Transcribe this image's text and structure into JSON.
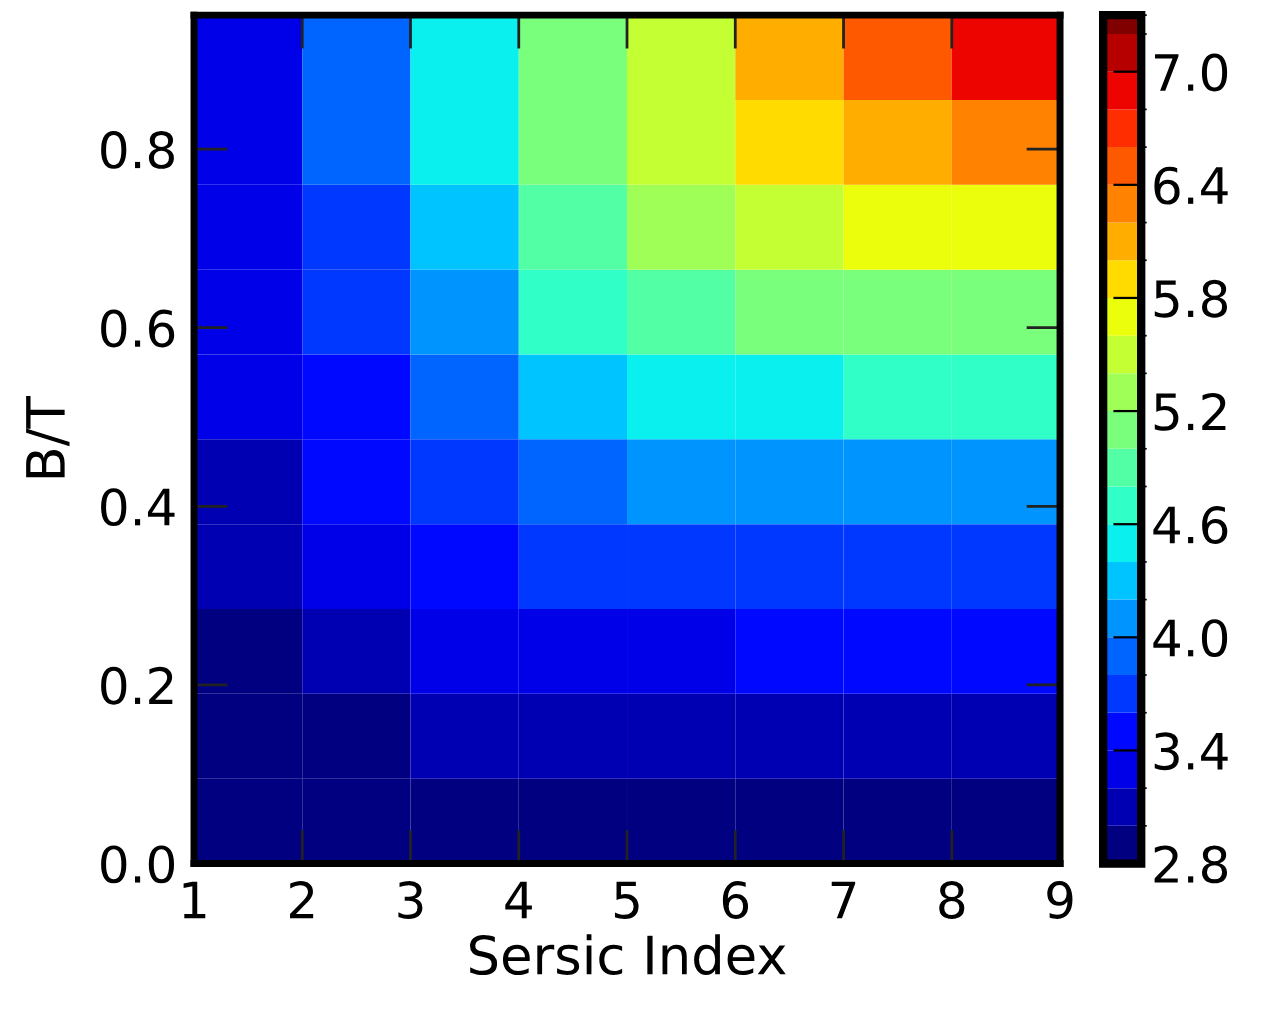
{
  "chart_data": {
    "type": "heatmap",
    "xlabel": "Sersic Index",
    "ylabel": "B/T",
    "x": [
      1.5,
      2.5,
      3.5,
      4.5,
      5.5,
      6.5,
      7.5,
      8.5
    ],
    "y": [
      0.0475,
      0.1425,
      0.2375,
      0.3325,
      0.4275,
      0.5225,
      0.6175,
      0.7125,
      0.8075,
      0.9025
    ],
    "cells": [
      [
        2.83,
        2.86,
        2.87,
        2.87,
        2.88,
        2.89,
        2.89,
        2.9
      ],
      [
        2.88,
        2.98,
        3.03,
        3.06,
        3.09,
        3.11,
        3.12,
        3.14
      ],
      [
        2.97,
        3.14,
        3.25,
        3.33,
        3.37,
        3.4,
        3.42,
        3.43
      ],
      [
        3.05,
        3.31,
        3.5,
        3.63,
        3.7,
        3.72,
        3.74,
        3.76
      ],
      [
        3.12,
        3.46,
        3.75,
        3.96,
        4.07,
        4.1,
        4.13,
        4.14
      ],
      [
        3.2,
        3.59,
        3.99,
        4.31,
        4.5,
        4.56,
        4.6,
        4.63
      ],
      [
        3.25,
        3.69,
        4.18,
        4.63,
        4.93,
        5.05,
        5.13,
        5.18
      ],
      [
        3.3,
        3.78,
        4.32,
        4.86,
        5.26,
        5.5,
        5.67,
        5.78
      ],
      [
        3.33,
        3.84,
        4.42,
        5.0,
        5.48,
        5.84,
        6.14,
        6.36
      ],
      [
        3.36,
        3.89,
        4.48,
        5.08,
        5.6,
        6.07,
        6.54,
        6.93
      ]
    ],
    "xlim": [
      1,
      9
    ],
    "ylim": [
      0,
      0.95
    ],
    "xticks": [
      1,
      2,
      3,
      4,
      5,
      6,
      7,
      8,
      9
    ],
    "yticks": [
      {
        "value": 0,
        "label": "0.0"
      },
      {
        "value": 0.2,
        "label": "0.2"
      },
      {
        "value": 0.4,
        "label": "0.4"
      },
      {
        "value": 0.6,
        "label": "0.6"
      },
      {
        "value": 0.8,
        "label": "0.8"
      }
    ],
    "clim": [
      2.8,
      7.3
    ],
    "cticks": [
      2.8,
      3.4,
      {
        "value": 4.0,
        "label": "4.0"
      },
      4.6,
      5.2,
      5.8,
      6.4,
      {
        "value": 7.0,
        "label": "7.0"
      }
    ]
  }
}
